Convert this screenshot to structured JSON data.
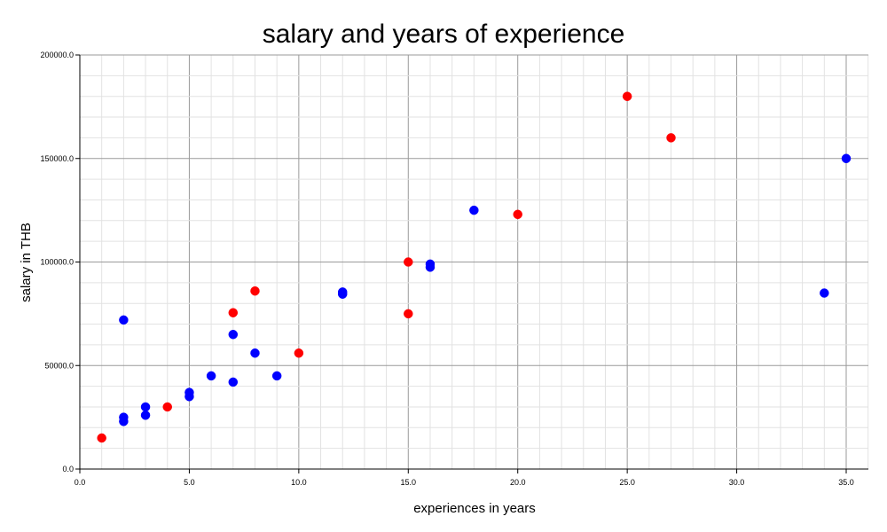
{
  "chart_data": {
    "type": "scatter",
    "title": "salary and years of experience",
    "xlabel": "experiences in years",
    "ylabel": "salary in THB",
    "xlim": [
      0,
      36
    ],
    "ylim": [
      0,
      200000
    ],
    "x_ticks": [
      0,
      5,
      10,
      15,
      20,
      25,
      30,
      35
    ],
    "x_tick_labels": [
      "0.0",
      "5.0",
      "10.0",
      "15.0",
      "20.0",
      "25.0",
      "30.0",
      "35.0"
    ],
    "y_ticks": [
      0,
      50000,
      100000,
      150000,
      200000
    ],
    "y_tick_labels": [
      "0.0",
      "50000.0",
      "100000.0",
      "150000.0",
      "200000.0"
    ],
    "x_minor_step": 1,
    "y_minor_step": 10000,
    "grid": true,
    "legend": "none",
    "series": [
      {
        "color": "#0000ff",
        "points": [
          {
            "x": 2,
            "y": 72000
          },
          {
            "x": 2,
            "y": 25000
          },
          {
            "x": 2,
            "y": 23000
          },
          {
            "x": 3,
            "y": 30000
          },
          {
            "x": 3,
            "y": 26000
          },
          {
            "x": 5,
            "y": 37000
          },
          {
            "x": 5,
            "y": 35000
          },
          {
            "x": 6,
            "y": 45000
          },
          {
            "x": 7,
            "y": 65000
          },
          {
            "x": 7,
            "y": 42000
          },
          {
            "x": 8,
            "y": 56000
          },
          {
            "x": 9,
            "y": 45000
          },
          {
            "x": 12,
            "y": 85500
          },
          {
            "x": 12,
            "y": 84500
          },
          {
            "x": 16,
            "y": 99000
          },
          {
            "x": 16,
            "y": 97500
          },
          {
            "x": 18,
            "y": 125000
          },
          {
            "x": 34,
            "y": 85000
          },
          {
            "x": 35,
            "y": 150000
          }
        ]
      },
      {
        "color": "#ff0000",
        "points": [
          {
            "x": 1,
            "y": 15000
          },
          {
            "x": 4,
            "y": 30000
          },
          {
            "x": 7,
            "y": 75500
          },
          {
            "x": 8,
            "y": 86000
          },
          {
            "x": 10,
            "y": 56000
          },
          {
            "x": 15,
            "y": 100000
          },
          {
            "x": 15,
            "y": 75000
          },
          {
            "x": 20,
            "y": 123000
          },
          {
            "x": 25,
            "y": 180000
          },
          {
            "x": 27,
            "y": 160000
          }
        ]
      }
    ]
  }
}
